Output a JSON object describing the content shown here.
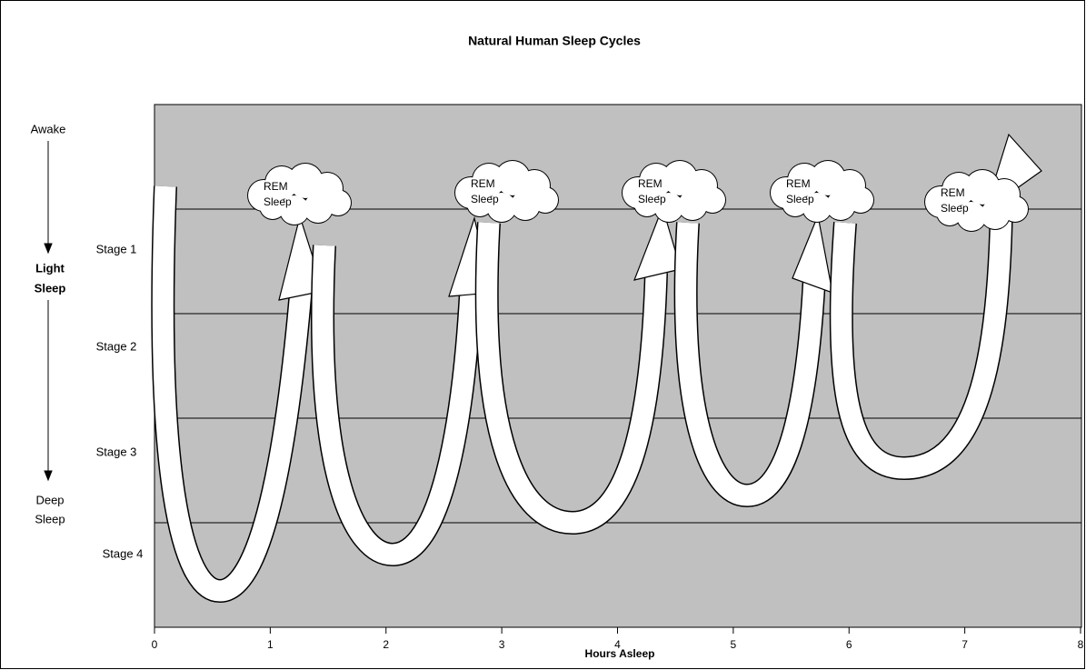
{
  "chart_data": {
    "type": "sleep-cycles",
    "title": "Natural Human Sleep Cycles",
    "x_label": "Hours Asleep",
    "xlim": [
      0,
      8
    ],
    "xticks": [
      0,
      1,
      2,
      3,
      4,
      5,
      6,
      7,
      8
    ],
    "stages": [
      "Stage 1",
      "Stage 2",
      "Stage 3",
      "Stage 4"
    ],
    "depth_labels": {
      "awake": "Awake",
      "light": [
        "Light",
        "Sleep"
      ],
      "deep": [
        "Deep",
        "Sleep"
      ]
    },
    "rem_labels": [
      [
        "REM",
        "Sleep"
      ],
      [
        "REM",
        "Sleep"
      ],
      [
        "REM",
        "Sleep"
      ],
      [
        "REM",
        "Sleep"
      ],
      [
        "REM",
        "Sleep"
      ]
    ],
    "plot_color": "#c0c0c0"
  }
}
